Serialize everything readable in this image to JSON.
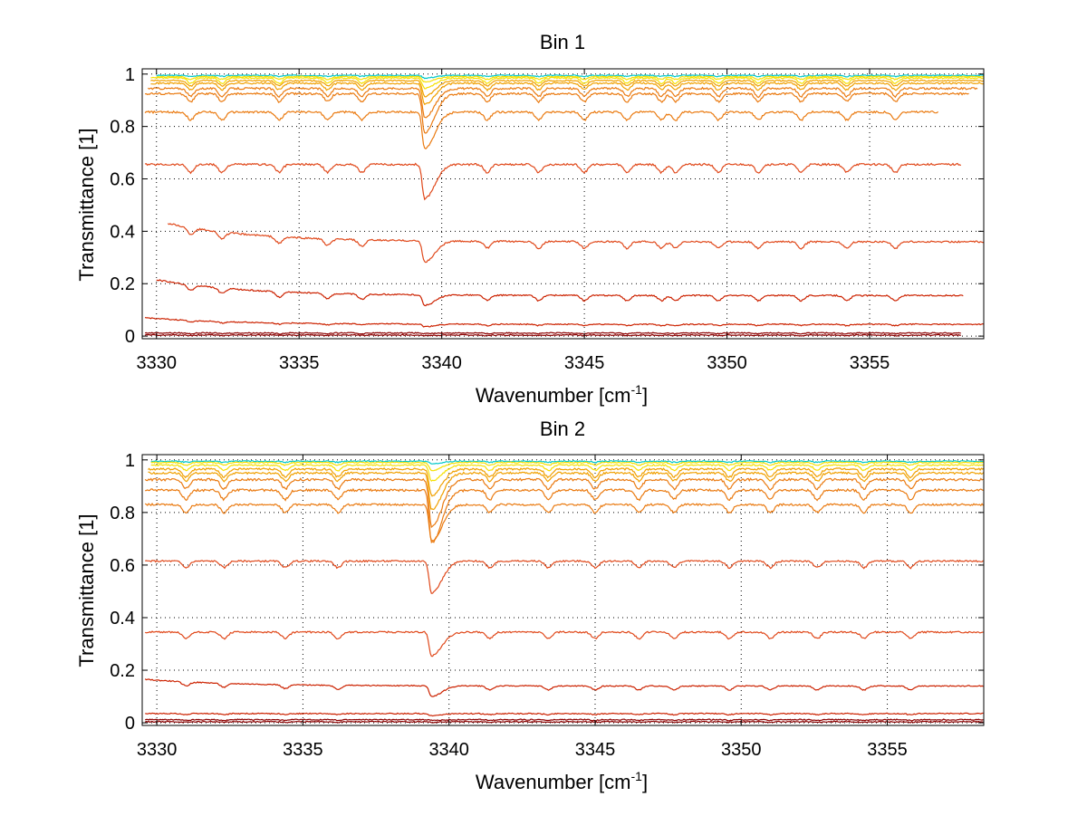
{
  "colors": {
    "line_hot": "#8b0000",
    "line_red": "#cc2200",
    "line_orange_red": "#e0481a",
    "line_orange": "#ea7a10",
    "line_amber": "#f0a000",
    "line_yellow": "#f6e000",
    "line_cyan": "#00c8c8",
    "grid": "#000000",
    "axes": "#000000"
  },
  "chart_data": [
    {
      "type": "line",
      "title": "Bin 1",
      "xlabel": "Wavenumber [cm",
      "xlabel_sup": "-1",
      "xlabel_close": "]",
      "ylabel": "Transmittance [1]",
      "xlim": [
        3329.5,
        3359
      ],
      "ylim": [
        -0.01,
        1.02
      ],
      "xticks": [
        3330,
        3335,
        3340,
        3345,
        3350,
        3355
      ],
      "xticklabels": [
        "3330",
        "3335",
        "3340",
        "3345",
        "3350",
        "3355"
      ],
      "yticks": [
        0,
        0.2,
        0.4,
        0.6,
        0.8,
        1
      ],
      "yticklabels": [
        "0",
        "0.2",
        "0.4",
        "0.6",
        "0.8",
        "1"
      ],
      "grid": true,
      "absorption_lines": [
        3331.2,
        3332.3,
        3334.3,
        3336.0,
        3337.2,
        3339.4,
        3341.6,
        3343.4,
        3345.0,
        3346.5,
        3347.7,
        3348.2,
        3349.7,
        3351.1,
        3352.6,
        3354.2,
        3355.9
      ],
      "series": [
        {
          "base": 0.995,
          "depth": 0.004,
          "main_dip": 0.01,
          "x_start": 3330.0,
          "x_end": 3359,
          "color": "line_cyan"
        },
        {
          "base": 0.99,
          "depth": 0.01,
          "main_dip": 0.02,
          "x_start": 3330.0,
          "x_end": 3359,
          "color": "line_yellow"
        },
        {
          "base": 0.985,
          "depth": 0.02,
          "main_dip": 0.04,
          "x_start": 3329.8,
          "x_end": 3359,
          "color": "line_yellow"
        },
        {
          "base": 0.975,
          "depth": 0.02,
          "main_dip": 0.06,
          "x_start": 3329.8,
          "x_end": 3359,
          "color": "line_amber"
        },
        {
          "base": 0.965,
          "depth": 0.025,
          "main_dip": 0.08,
          "x_start": 3329.8,
          "x_end": 3359,
          "color": "line_amber"
        },
        {
          "base": 0.945,
          "depth": 0.03,
          "main_dip": 0.11,
          "x_start": 3329.7,
          "x_end": 3358.8,
          "color": "line_orange"
        },
        {
          "base": 0.925,
          "depth": 0.03,
          "main_dip": 0.15,
          "x_start": 3329.6,
          "x_end": 3358.5,
          "color": "line_orange"
        },
        {
          "base": 0.855,
          "depth": 0.03,
          "main_dip": 0.14,
          "x_start": 3329.6,
          "x_end": 3357.4,
          "color": "line_orange"
        },
        {
          "base": 0.655,
          "depth": 0.03,
          "main_dip": 0.13,
          "x_start": 3329.6,
          "x_end": 3358.2,
          "color": "line_orange_red"
        },
        {
          "base": 0.36,
          "depth": 0.025,
          "main_dip": 0.08,
          "x_start": 3330.4,
          "x_end": 3359,
          "color": "line_orange_red",
          "start_high": 0.43
        },
        {
          "base": 0.155,
          "depth": 0.02,
          "main_dip": 0.04,
          "x_start": 3330.0,
          "x_end": 3358.3,
          "color": "line_red",
          "start_high": 0.215
        },
        {
          "base": 0.045,
          "depth": 0.005,
          "main_dip": 0.01,
          "x_start": 3329.6,
          "x_end": 3359,
          "color": "line_red",
          "start_high": 0.07
        },
        {
          "base": 0.012,
          "depth": 0.003,
          "main_dip": 0.003,
          "x_start": 3329.6,
          "x_end": 3358.2,
          "color": "line_hot"
        },
        {
          "base": 0.004,
          "depth": 0.002,
          "main_dip": 0.002,
          "x_start": 3329.6,
          "x_end": 3358.2,
          "color": "line_hot"
        }
      ]
    },
    {
      "type": "line",
      "title": "Bin 2",
      "xlabel": "Wavenumber [cm",
      "xlabel_sup": "-1",
      "xlabel_close": "]",
      "ylabel": "Transmittance [1]",
      "xlim": [
        3329.5,
        3358.3
      ],
      "ylim": [
        -0.01,
        1.02
      ],
      "xticks": [
        3330,
        3335,
        3340,
        3345,
        3350,
        3355
      ],
      "xticklabels": [
        "3330",
        "3335",
        "3340",
        "3345",
        "3350",
        "3355"
      ],
      "yticks": [
        0,
        0.2,
        0.4,
        0.6,
        0.8,
        1
      ],
      "yticklabels": [
        "0",
        "0.2",
        "0.4",
        "0.6",
        "0.8",
        "1"
      ],
      "grid": true,
      "absorption_lines": [
        3331.0,
        3332.3,
        3334.4,
        3336.2,
        3339.4,
        3341.4,
        3343.4,
        3345.0,
        3346.5,
        3347.7,
        3349.6,
        3351.0,
        3352.6,
        3354.2,
        3355.8
      ],
      "series": [
        {
          "base": 0.995,
          "depth": 0.004,
          "main_dip": 0.01,
          "x_start": 3329.8,
          "x_end": 3358.3,
          "color": "line_cyan"
        },
        {
          "base": 0.99,
          "depth": 0.01,
          "main_dip": 0.03,
          "x_start": 3329.8,
          "x_end": 3358.3,
          "color": "line_yellow"
        },
        {
          "base": 0.98,
          "depth": 0.02,
          "main_dip": 0.06,
          "x_start": 3329.8,
          "x_end": 3358.3,
          "color": "line_yellow"
        },
        {
          "base": 0.965,
          "depth": 0.03,
          "main_dip": 0.1,
          "x_start": 3329.7,
          "x_end": 3358.3,
          "color": "line_amber"
        },
        {
          "base": 0.95,
          "depth": 0.03,
          "main_dip": 0.14,
          "x_start": 3329.7,
          "x_end": 3358.3,
          "color": "line_amber"
        },
        {
          "base": 0.925,
          "depth": 0.035,
          "main_dip": 0.18,
          "x_start": 3329.6,
          "x_end": 3358.3,
          "color": "line_orange"
        },
        {
          "base": 0.885,
          "depth": 0.035,
          "main_dip": 0.2,
          "x_start": 3329.6,
          "x_end": 3358.3,
          "color": "line_orange"
        },
        {
          "base": 0.83,
          "depth": 0.03,
          "main_dip": 0.14,
          "x_start": 3329.6,
          "x_end": 3358.3,
          "color": "line_orange"
        },
        {
          "base": 0.615,
          "depth": 0.025,
          "main_dip": 0.12,
          "x_start": 3329.6,
          "x_end": 3358.3,
          "color": "line_orange_red"
        },
        {
          "base": 0.345,
          "depth": 0.025,
          "main_dip": 0.09,
          "x_start": 3329.6,
          "x_end": 3358.3,
          "color": "line_orange_red"
        },
        {
          "base": 0.14,
          "depth": 0.015,
          "main_dip": 0.04,
          "x_start": 3329.6,
          "x_end": 3358.3,
          "color": "line_red",
          "start_high": 0.165
        },
        {
          "base": 0.035,
          "depth": 0.004,
          "main_dip": 0.008,
          "x_start": 3329.6,
          "x_end": 3358.3,
          "color": "line_red"
        },
        {
          "base": 0.012,
          "depth": 0.003,
          "main_dip": 0.003,
          "x_start": 3329.6,
          "x_end": 3358.3,
          "color": "line_hot"
        },
        {
          "base": 0.004,
          "depth": 0.002,
          "main_dip": 0.002,
          "x_start": 3329.6,
          "x_end": 3358.3,
          "color": "line_hot"
        }
      ]
    }
  ]
}
